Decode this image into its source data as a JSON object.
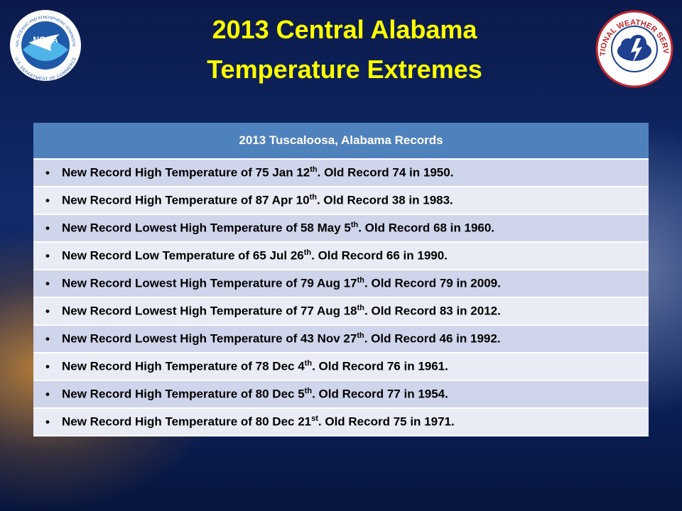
{
  "header": {
    "title_lines": [
      "2013 Central Alabama",
      "Temperature Extremes"
    ],
    "logos": {
      "noaa": "NOAA",
      "noaa_ring_top": "NATIONAL OCEANIC AND ATMOSPHERIC ADMINISTRATION",
      "noaa_ring_bottom": "U.S. DEPARTMENT OF COMMERCE",
      "nws": "NATIONAL WEATHER SERVICE"
    }
  },
  "table": {
    "header": "2013 Tuscaloosa, Alabama  Records",
    "rows": [
      {
        "text": "New Record High Temperature of 75 Jan 12",
        "sup": "th",
        "tail": ". Old Record 74 in 1950."
      },
      {
        "text": "New Record High Temperature of 87 Apr 10",
        "sup": "th",
        "tail": ". Old Record 38 in 1983."
      },
      {
        "text": "New Record Lowest High Temperature of 58 May 5",
        "sup": "th",
        "tail": ". Old Record 68 in 1960."
      },
      {
        "text": "New Record Low Temperature of 65 Jul 26",
        "sup": "th",
        "tail": ". Old Record 66 in 1990."
      },
      {
        "text": "New Record Lowest High Temperature of 79 Aug 17",
        "sup": "th",
        "tail": ". Old Record 79 in 2009."
      },
      {
        "text": "New Record Lowest High Temperature of 77 Aug 18",
        "sup": "th",
        "tail": ". Old Record 83 in 2012."
      },
      {
        "text": "New Record Lowest High Temperature of 43 Nov 27",
        "sup": "th",
        "tail": ". Old Record 46 in 1992."
      },
      {
        "text": "New Record High Temperature of 78 Dec 4",
        "sup": "th",
        "tail": ". Old Record 76 in 1961."
      },
      {
        "text": "New Record High Temperature of 80 Dec 5",
        "sup": "th",
        "tail": ". Old Record 77 in 1954."
      },
      {
        "text": "New Record High Temperature of 80 Dec 21",
        "sup": "st",
        "tail": ". Old Record 75 in 1971."
      }
    ]
  }
}
